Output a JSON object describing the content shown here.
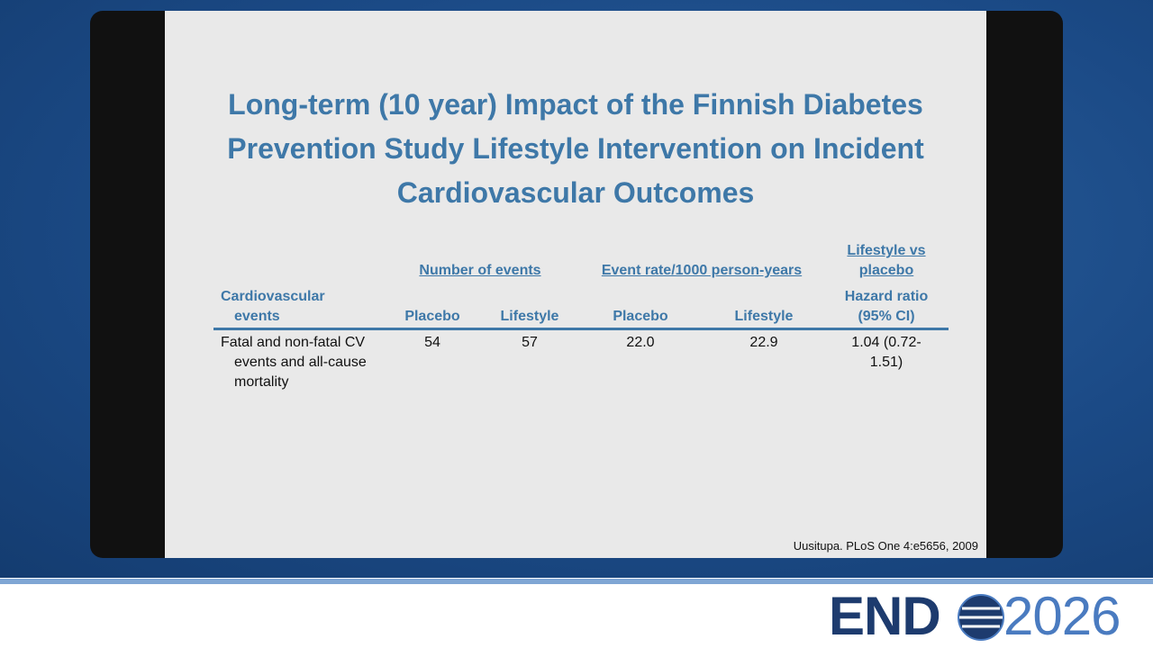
{
  "slide": {
    "title_lines": [
      "Long-term (10 year) Impact of the Finnish Diabetes",
      "Prevention Study Lifestyle Intervention on Incident",
      "Cardiovascular Outcomes"
    ],
    "table": {
      "group_headers": [
        "Number of events",
        "Event rate/1000 person-years",
        "Lifestyle vs placebo"
      ],
      "columns": [
        "Cardiovascular events",
        "Placebo",
        "Lifestyle",
        "Placebo",
        "Lifestyle",
        "Hazard ratio (95% CI)"
      ],
      "rows": [
        [
          "Fatal and non-fatal CV events and all-cause mortality",
          "54",
          "57",
          "22.0",
          "22.9",
          "1.04 (0.72-1.51)"
        ]
      ]
    },
    "citation": "Uusitupa. PLoS One 4:e5656, 2009"
  },
  "logo": {
    "left": "END",
    "right": "2026"
  }
}
